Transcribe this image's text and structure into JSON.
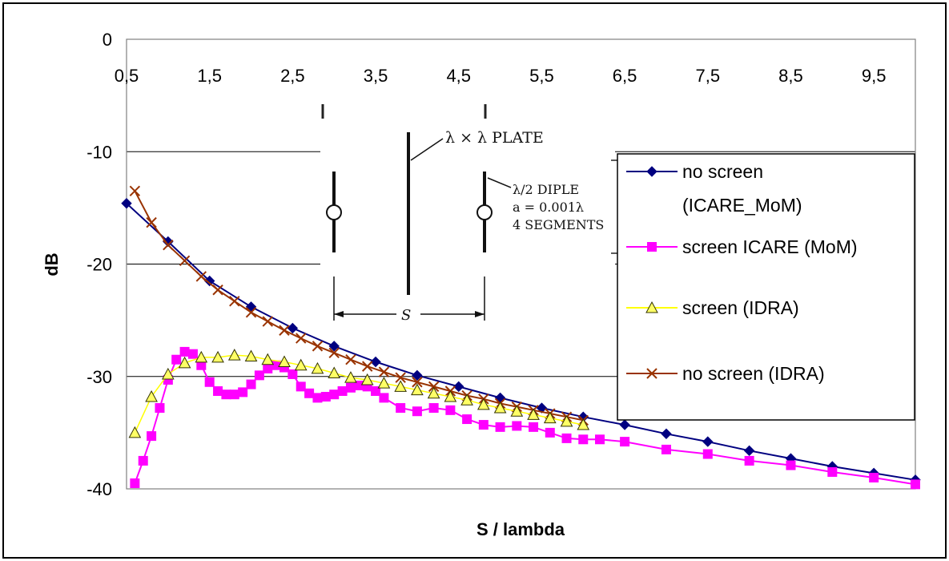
{
  "chart_data": {
    "type": "line",
    "title": "",
    "xlabel": "S / lambda",
    "ylabel": "dB",
    "xlim": [
      0.5,
      10
    ],
    "ylim": [
      -40,
      0
    ],
    "x_ticks": [
      "0,5",
      "1,5",
      "2,5",
      "3,5",
      "4,5",
      "5,5",
      "6,5",
      "7,5",
      "8,5",
      "9,5"
    ],
    "x_tick_values": [
      0.5,
      1.5,
      2.5,
      3.5,
      4.5,
      5.5,
      6.5,
      7.5,
      8.5,
      9.5
    ],
    "y_ticks": [
      "0",
      "-10",
      "-20",
      "-30",
      "-40"
    ],
    "y_tick_values": [
      0,
      -10,
      -20,
      -30,
      -40
    ],
    "grid": "horizontal",
    "legend_position": "right",
    "series": [
      {
        "name": "no screen (ICARE_MoM)",
        "legend_lines": [
          "no screen",
          "(ICARE_MoM)"
        ],
        "color": "#000080",
        "marker": "diamond",
        "points": [
          [
            0.5,
            -14.6
          ],
          [
            1,
            -18
          ],
          [
            1.5,
            -21.5
          ],
          [
            2,
            -23.8
          ],
          [
            2.5,
            -25.7
          ],
          [
            3,
            -27.3
          ],
          [
            3.5,
            -28.7
          ],
          [
            4,
            -29.9
          ],
          [
            4.5,
            -30.9
          ],
          [
            5,
            -31.9
          ],
          [
            5.5,
            -32.8
          ],
          [
            6,
            -33.6
          ],
          [
            6.5,
            -34.3
          ],
          [
            7,
            -35.1
          ],
          [
            7.5,
            -35.8
          ],
          [
            8,
            -36.6
          ],
          [
            8.5,
            -37.3
          ],
          [
            9,
            -38
          ],
          [
            9.5,
            -38.6
          ],
          [
            10,
            -39.2
          ]
        ]
      },
      {
        "name": "screen ICARE (MoM)",
        "legend_lines": [
          "screen ICARE (MoM)"
        ],
        "color": "#ff00ff",
        "marker": "square",
        "points": [
          [
            0.5,
            -40.4
          ],
          [
            0.6,
            -39.5
          ],
          [
            0.7,
            -37.5
          ],
          [
            0.8,
            -35.3
          ],
          [
            0.9,
            -32.8
          ],
          [
            1,
            -30.3
          ],
          [
            1.1,
            -28.5
          ],
          [
            1.2,
            -27.8
          ],
          [
            1.3,
            -28
          ],
          [
            1.4,
            -29
          ],
          [
            1.5,
            -30.5
          ],
          [
            1.6,
            -31.3
          ],
          [
            1.7,
            -31.6
          ],
          [
            1.8,
            -31.6
          ],
          [
            1.9,
            -31.4
          ],
          [
            2,
            -30.7
          ],
          [
            2.1,
            -29.9
          ],
          [
            2.2,
            -29.3
          ],
          [
            2.3,
            -29
          ],
          [
            2.4,
            -29.2
          ],
          [
            2.5,
            -29.8
          ],
          [
            2.6,
            -30.9
          ],
          [
            2.7,
            -31.5
          ],
          [
            2.8,
            -31.9
          ],
          [
            2.9,
            -31.8
          ],
          [
            3,
            -31.6
          ],
          [
            3.1,
            -31.3
          ],
          [
            3.2,
            -31
          ],
          [
            3.3,
            -30.8
          ],
          [
            3.4,
            -30.9
          ],
          [
            3.5,
            -31.3
          ],
          [
            3.6,
            -31.9
          ],
          [
            3.8,
            -32.8
          ],
          [
            4,
            -33.1
          ],
          [
            4.2,
            -32.8
          ],
          [
            4.4,
            -33
          ],
          [
            4.6,
            -33.8
          ],
          [
            4.8,
            -34.3
          ],
          [
            5,
            -34.5
          ],
          [
            5.2,
            -34.4
          ],
          [
            5.4,
            -34.5
          ],
          [
            5.6,
            -35
          ],
          [
            5.8,
            -35.5
          ],
          [
            6,
            -35.6
          ],
          [
            6.2,
            -35.6
          ],
          [
            6.5,
            -35.8
          ],
          [
            7,
            -36.5
          ],
          [
            7.5,
            -36.9
          ],
          [
            8,
            -37.5
          ],
          [
            8.5,
            -37.9
          ],
          [
            9,
            -38.5
          ],
          [
            9.5,
            -39
          ],
          [
            10,
            -39.6
          ]
        ]
      },
      {
        "name": "screen (IDRA)",
        "legend_lines": [
          "screen (IDRA)"
        ],
        "color": "#ffff00",
        "marker_fill": "#ffff66",
        "marker_stroke": "#333300",
        "marker": "triangle",
        "points": [
          [
            0.6,
            -35
          ],
          [
            0.8,
            -31.8
          ],
          [
            1,
            -29.8
          ],
          [
            1.2,
            -28.8
          ],
          [
            1.4,
            -28.3
          ],
          [
            1.6,
            -28.3
          ],
          [
            1.8,
            -28.1
          ],
          [
            2,
            -28.2
          ],
          [
            2.2,
            -28.5
          ],
          [
            2.4,
            -28.7
          ],
          [
            2.6,
            -29
          ],
          [
            2.8,
            -29.3
          ],
          [
            3,
            -29.7
          ],
          [
            3.2,
            -30.1
          ],
          [
            3.4,
            -30.3
          ],
          [
            3.6,
            -30.6
          ],
          [
            3.8,
            -30.9
          ],
          [
            4,
            -31.2
          ],
          [
            4.2,
            -31.5
          ],
          [
            4.4,
            -31.8
          ],
          [
            4.6,
            -32.1
          ],
          [
            4.8,
            -32.5
          ],
          [
            5,
            -32.8
          ],
          [
            5.2,
            -33.1
          ],
          [
            5.4,
            -33.4
          ],
          [
            5.6,
            -33.7
          ],
          [
            5.8,
            -34
          ],
          [
            6,
            -34.3
          ]
        ]
      },
      {
        "name": "no screen (IDRA)",
        "legend_lines": [
          "no screen (IDRA)"
        ],
        "color": "#993300",
        "marker": "x",
        "points": [
          [
            0.6,
            -13.5
          ],
          [
            0.8,
            -16.3
          ],
          [
            1,
            -18.3
          ],
          [
            1.2,
            -19.7
          ],
          [
            1.4,
            -21.1
          ],
          [
            1.6,
            -22.3
          ],
          [
            1.8,
            -23.3
          ],
          [
            2,
            -24.3
          ],
          [
            2.2,
            -25.1
          ],
          [
            2.4,
            -25.9
          ],
          [
            2.6,
            -26.6
          ],
          [
            2.8,
            -27.3
          ],
          [
            3,
            -27.9
          ],
          [
            3.2,
            -28.5
          ],
          [
            3.4,
            -29.1
          ],
          [
            3.6,
            -29.6
          ],
          [
            3.8,
            -30.1
          ],
          [
            4,
            -30.5
          ],
          [
            4.2,
            -30.9
          ],
          [
            4.4,
            -31.3
          ],
          [
            4.6,
            -31.7
          ],
          [
            4.8,
            -32
          ],
          [
            5,
            -32.4
          ],
          [
            5.2,
            -32.7
          ],
          [
            5.4,
            -33
          ],
          [
            5.6,
            -33.3
          ],
          [
            5.8,
            -33.6
          ],
          [
            6,
            -33.9
          ]
        ]
      }
    ],
    "inset": {
      "plate_label": "λ × λ PLATE",
      "dipole_label_1": "λ/2 DIPLE",
      "dipole_label_2": "a = 0.001λ",
      "dipole_label_3": "4 SEGMENTS",
      "spacing_label": "S"
    }
  }
}
